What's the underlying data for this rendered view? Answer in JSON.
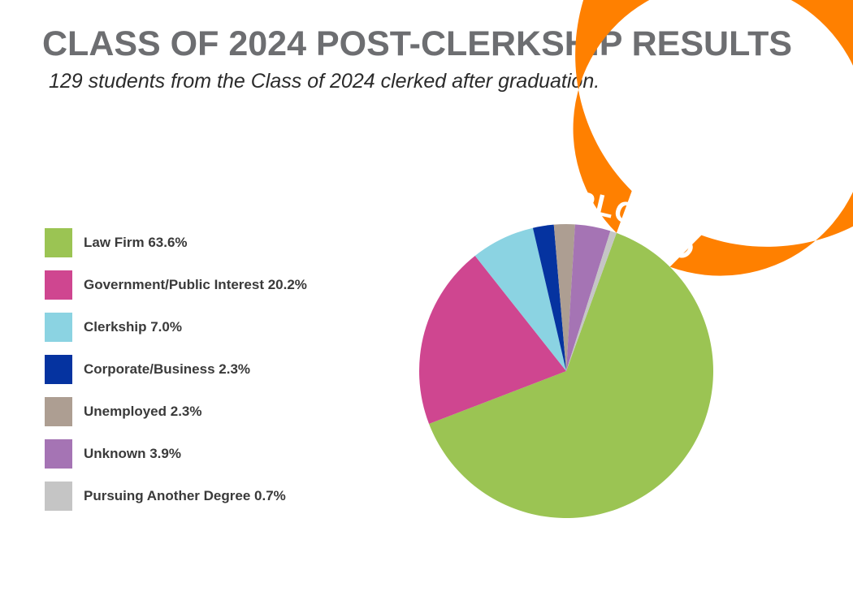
{
  "header": {
    "title": "CLASS OF 2024 POST-CLERKSHIP RESULTS",
    "subtitle": "129 students from the Class of 2024 clerked after graduation."
  },
  "chart_data": {
    "type": "pie",
    "title": "CLASS OF 2024 POST-CLERKSHIP RESULTS",
    "subtitle": "129 students from the Class of 2024 clerked after graduation.",
    "slices": [
      {
        "label": "Law Firm 63.6%",
        "category": "Law Firm",
        "value": 63.6,
        "color": "#9bc453"
      },
      {
        "label": "Government/Public Interest 20.2%",
        "category": "Government/Public Interest",
        "value": 20.2,
        "color": "#cf4690"
      },
      {
        "label": "Clerkship 7.0%",
        "category": "Clerkship",
        "value": 7.0,
        "color": "#8bd3e2"
      },
      {
        "label": "Corporate/Business 2.3%",
        "category": "Corporate/Business",
        "value": 2.3,
        "color": "#0533a0"
      },
      {
        "label": "Unemployed 2.3%",
        "category": "Unemployed",
        "value": 2.3,
        "color": "#ad9e92"
      },
      {
        "label": "Unknown 3.9%",
        "category": "Unknown",
        "value": 3.9,
        "color": "#a574b4"
      },
      {
        "label": "Pursuing Another Degree 0.7%",
        "category": "Pursuing Another Degree",
        "value": 0.7,
        "color": "#c5c5c5"
      }
    ],
    "ring": {
      "label": "93.1% EMPLOYED",
      "value": 93.1,
      "color": "#ff8000"
    },
    "legend_position": "left"
  }
}
